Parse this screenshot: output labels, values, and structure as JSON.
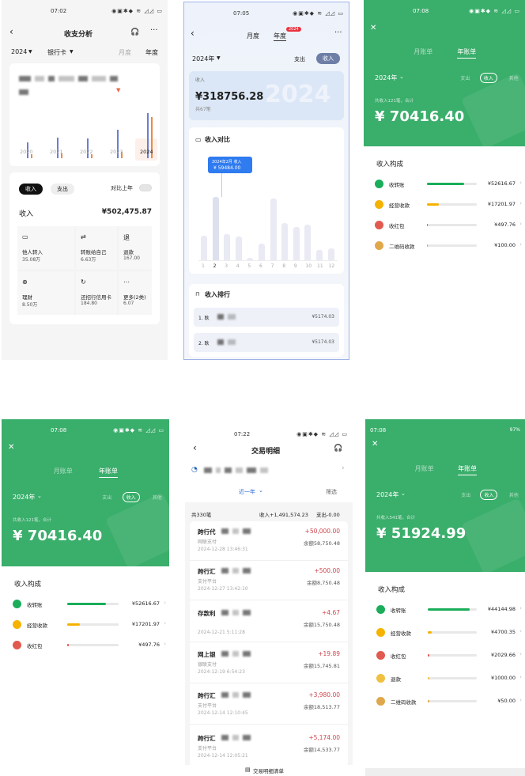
{
  "accent_colors": {
    "wechat_green": "#3aae6b",
    "blue": "#6b7fd0",
    "orange": "#e98a4a",
    "red_amount": "#d0464f",
    "tooltip_blue": "#2f7bf0"
  },
  "p1": {
    "status_time": "07:02",
    "title": "收支分析",
    "year": "2024",
    "account": "银行卡",
    "tab_month": "月度",
    "tab_year": "年度",
    "chart": {
      "type": "bar",
      "categories": [
        "2020",
        "2021",
        "2022",
        "2023",
        "2024"
      ],
      "series": [
        {
          "color": "#6b7fd0",
          "values": [
            0.32,
            0.43,
            0.41,
            0.61,
            1.0
          ]
        },
        {
          "color": "#e98a4a",
          "values": [
            0.05,
            0.07,
            0.05,
            0.11,
            0.91
          ]
        }
      ],
      "note": "relative bar heights, no axis printed",
      "selected": "2024"
    },
    "toggle_income": "收入",
    "toggle_expense": "支出",
    "compare_label": "对比上年",
    "compare_on": false,
    "income_label": "收入",
    "income_value": "¥502,475.87",
    "tiles": [
      {
        "icon": "card-in-icon",
        "label": "他人转入",
        "value": "35.08万"
      },
      {
        "icon": "transfer-icon",
        "label": "转账给自己",
        "value": "6.63万"
      },
      {
        "icon": "refund-icon",
        "label": "退款",
        "value": "167.00"
      },
      {
        "icon": "wealth-icon",
        "label": "理财",
        "value": "8.50万"
      },
      {
        "icon": "credit-card-icon",
        "label": "还招行信用卡",
        "value": "184.80"
      },
      {
        "icon": "more-icon",
        "label": "更多(2类)",
        "value": "6.07"
      }
    ]
  },
  "p2": {
    "status_time": "07:05",
    "tab_month": "月度",
    "tab_year": "年度",
    "badge": "2024",
    "year": "2024年",
    "expense": "支出",
    "income": "收入",
    "summary_label": "收入",
    "summary_value": "¥318756.28",
    "summary_sub": "共67笔",
    "watermark": "2024",
    "chart_title": "收入对比",
    "tooltip_title": "2024年2月 收入",
    "tooltip_value": "¥ 59484.00",
    "chart_data": {
      "type": "bar",
      "categories": [
        "1",
        "2",
        "3",
        "4",
        "5",
        "6",
        "7",
        "8",
        "9",
        "10",
        "11",
        "12"
      ],
      "values": [
        22600,
        59484,
        23800,
        21400,
        1200,
        14900,
        57700,
        34500,
        30900,
        33300,
        8900,
        10700
      ],
      "selected": "2"
    },
    "ranking_title": "收入排行",
    "ranking": [
      {
        "name": "1. 耿",
        "amount": "¥5174.03"
      },
      {
        "name": "2. 耿",
        "amount": "¥5174.03"
      }
    ]
  },
  "wx1": {
    "status_time": "07:08",
    "tab_month": "月账单",
    "tab_year": "年账单",
    "year": "2024年",
    "expense": "支出",
    "income": "收入",
    "other": "其他",
    "note": "共收入121笔，合计",
    "total": "¥ 70416.40",
    "section": "收入构成",
    "items": [
      {
        "icon": "receive-transfer-icon",
        "color": "#1aad5a",
        "label": "收转账",
        "amount": "¥52616.67",
        "pct": 74.7
      },
      {
        "icon": "business-income-icon",
        "color": "#f5b300",
        "label": "经营收款",
        "amount": "¥17201.97",
        "pct": 24.4
      },
      {
        "icon": "red-packet-icon",
        "color": "#e15a4f",
        "label": "收红包",
        "amount": "¥497.76",
        "pct": 0.7
      },
      {
        "icon": "qr-code-income-icon",
        "color": "#e0a84a",
        "label": "二维码收款",
        "amount": "¥100.00",
        "pct": 0.1
      }
    ]
  },
  "p5": {
    "status_time": "07:22",
    "title": "交易明细",
    "period": "近一年",
    "filter": "筛选",
    "count": "共330笔",
    "income_sum": "收入+1,491,574.23",
    "expense_sum": "支出-0.00",
    "rows": [
      {
        "name": "跨行代",
        "channel": "网联支付",
        "time": "2024-12-28 13:46:31",
        "amount": "+50,000.00",
        "balance": "余额58,750.48"
      },
      {
        "name": "跨行汇",
        "channel": "支付平台",
        "time": "2024-12-27 13:42:10",
        "amount": "+500.00",
        "balance": "余额8,750.48"
      },
      {
        "name": "存款利",
        "channel": "",
        "time": "2024-12-21 5:11:28",
        "amount": "+4.67",
        "balance": "余额15,750.48"
      },
      {
        "name": "网上银",
        "channel": "银联支付",
        "time": "2024-12-19 6:54:23",
        "amount": "+19.89",
        "balance": "余额15,745.81"
      },
      {
        "name": "跨行汇",
        "channel": "支付平台",
        "time": "2024-12-14 12:10:45",
        "amount": "+3,980.00",
        "balance": "余额18,513.77"
      },
      {
        "name": "跨行汇",
        "channel": "支付平台",
        "time": "2024-12-14 12:05:21",
        "amount": "+5,174.00",
        "balance": "余额14,533.77"
      }
    ],
    "footer": "交易明细清单"
  },
  "wx2": {
    "status_time": "07:08",
    "battery": "97%",
    "tab_month": "月账单",
    "tab_year": "年账单",
    "year": "2024年",
    "expense": "支出",
    "income": "收入",
    "other": "其他",
    "note": "共收入541笔，合计",
    "total": "¥ 51924.99",
    "section": "收入构成",
    "items": [
      {
        "icon": "receive-transfer-icon",
        "color": "#1aad5a",
        "label": "收转账",
        "amount": "¥44144.98",
        "pct": 85
      },
      {
        "icon": "business-income-icon",
        "color": "#f5b300",
        "label": "经营收款",
        "amount": "¥4700.35",
        "pct": 9
      },
      {
        "icon": "red-packet-icon",
        "color": "#e15a4f",
        "label": "收红包",
        "amount": "¥2029.66",
        "pct": 3.9
      },
      {
        "icon": "refund-icon",
        "color": "#f0c040",
        "label": "退款",
        "amount": "¥1000.00",
        "pct": 1.9
      },
      {
        "icon": "qr-code-income-icon",
        "color": "#e0a84a",
        "label": "二维码收款",
        "amount": "¥50.00",
        "pct": 0.1
      }
    ]
  }
}
